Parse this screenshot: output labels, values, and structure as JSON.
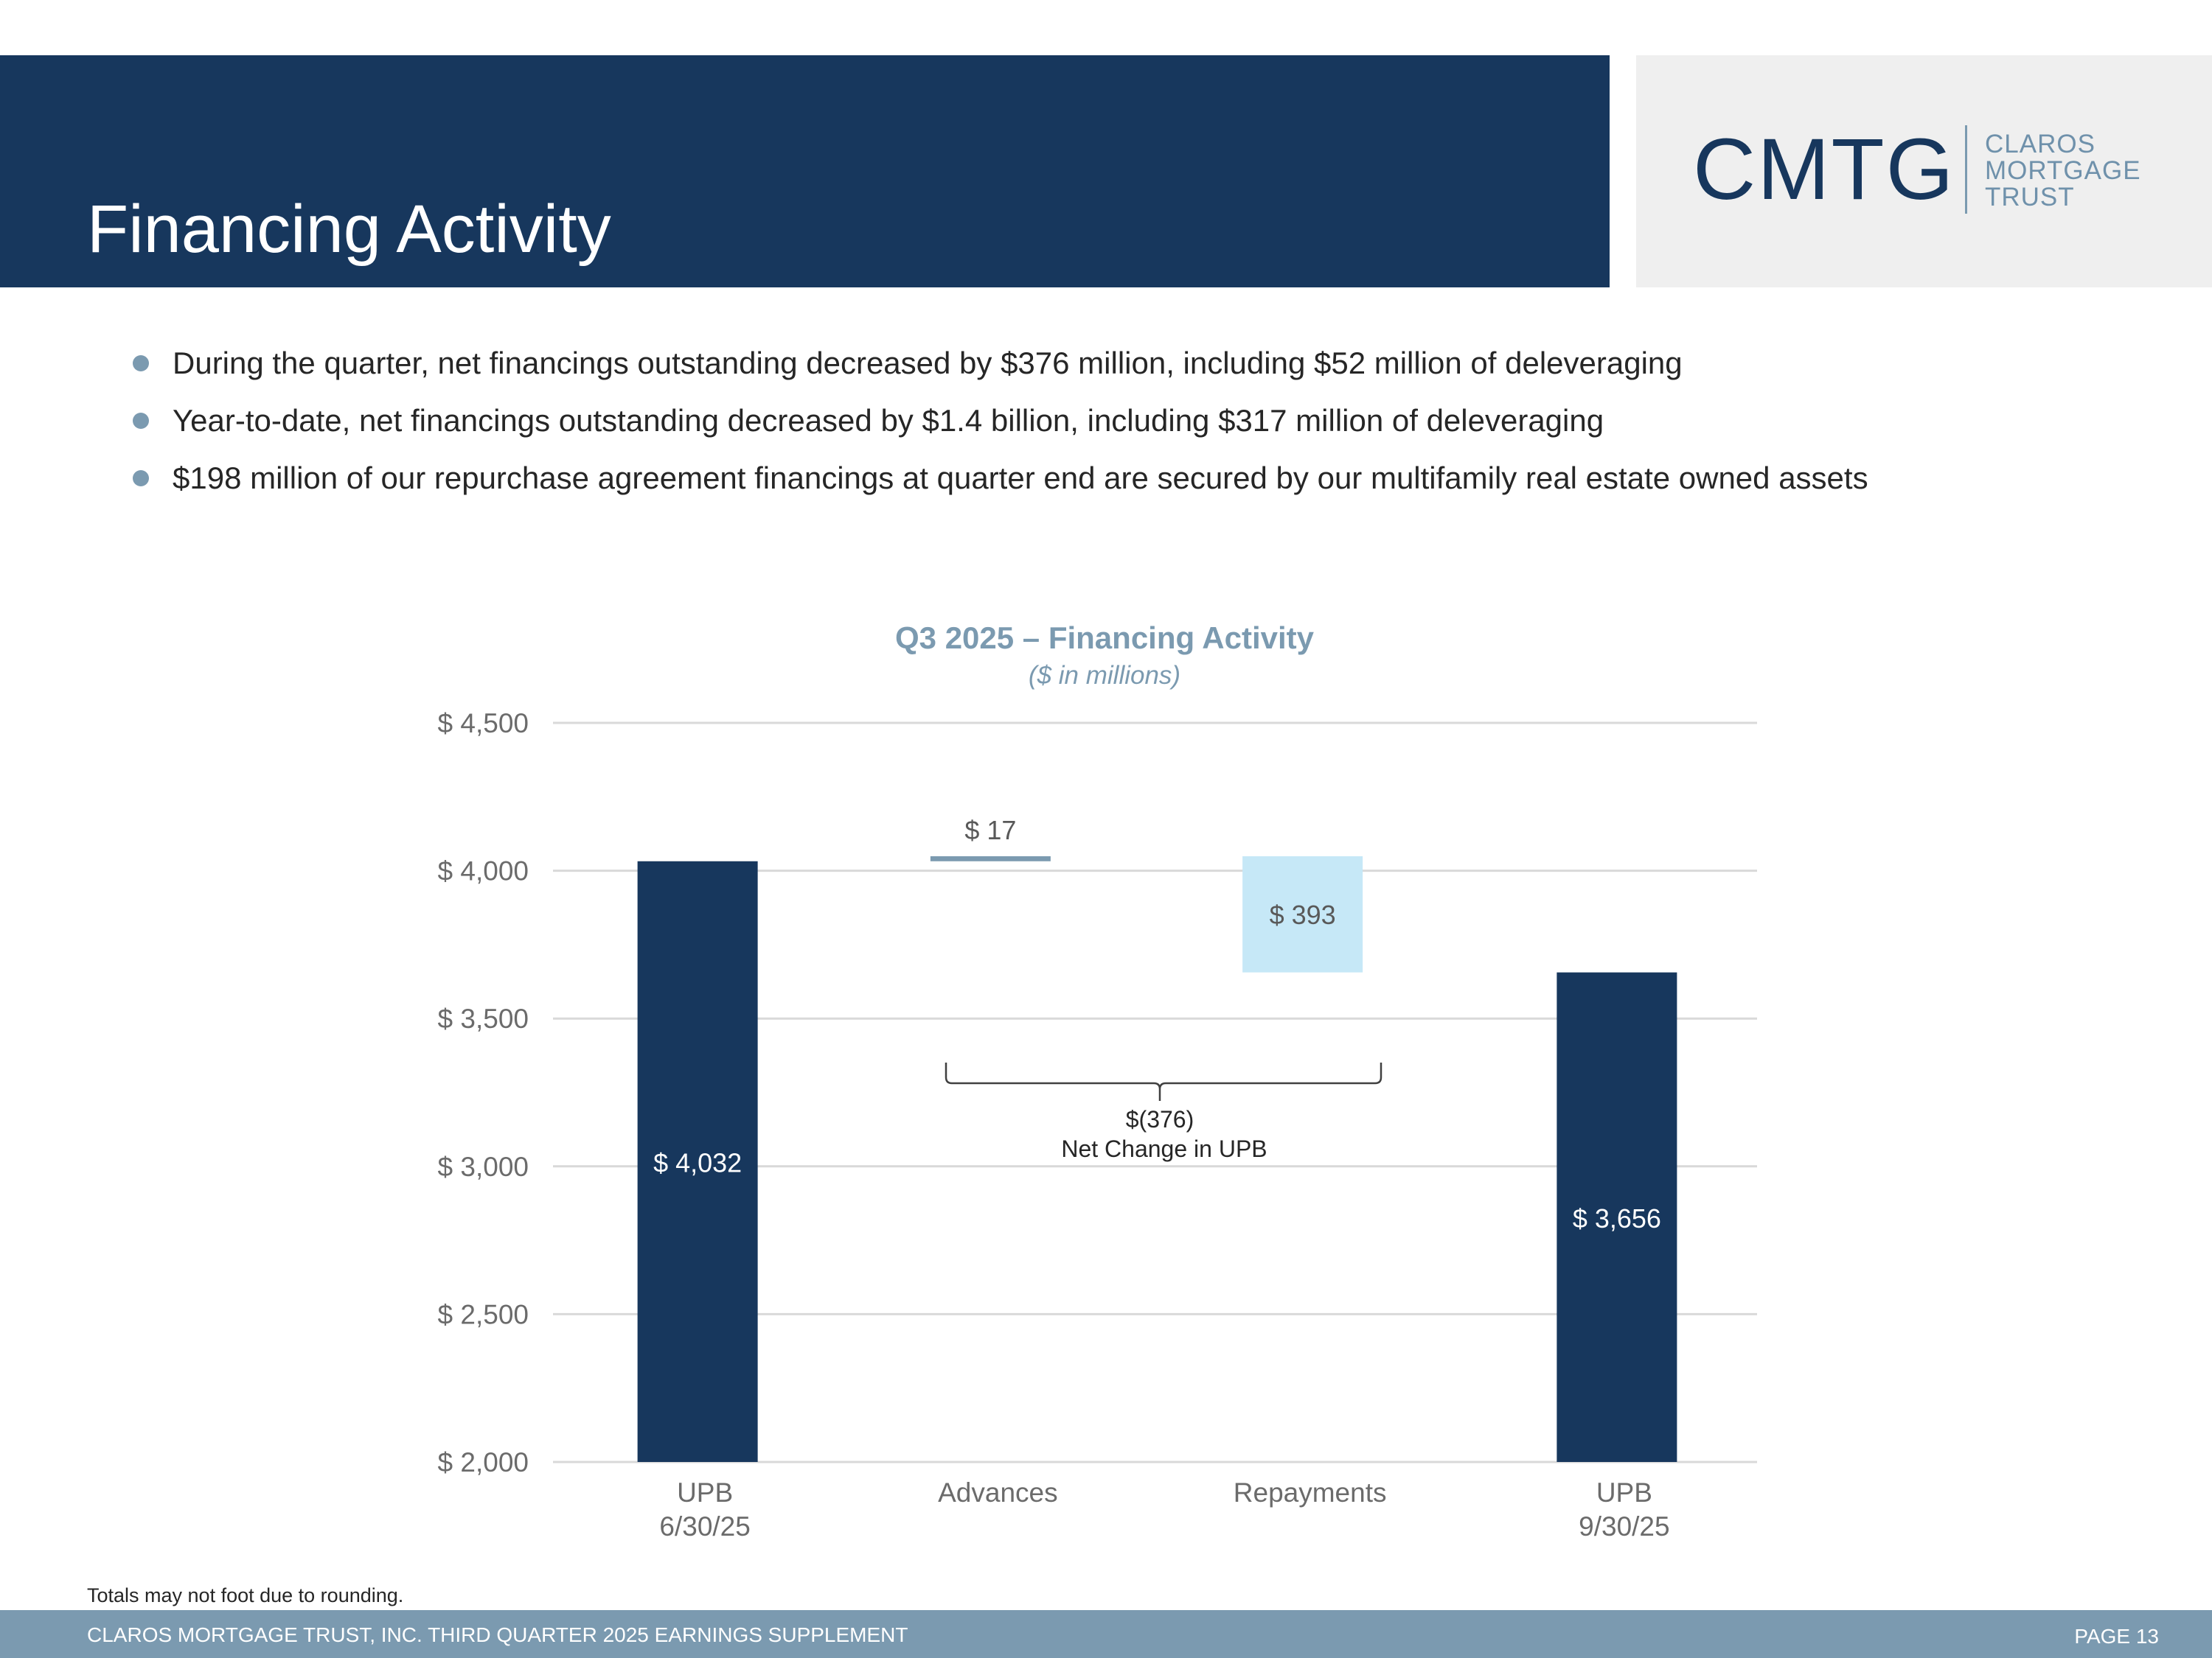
{
  "page": {
    "title": "Financing Activity",
    "page_label": "PAGE 13",
    "footer_text": "CLAROS MORTGAGE TRUST, INC. THIRD QUARTER 2025 EARNINGS SUPPLEMENT",
    "footnote": "Totals may not foot due to rounding."
  },
  "logo": {
    "mark": "CMTG",
    "words": [
      "CLAROS",
      "MORTGAGE",
      "TRUST"
    ]
  },
  "bullets": [
    "During the quarter, net financings outstanding decreased by $376 million, including $52 million of deleveraging",
    "Year-to-date, net financings outstanding decreased by $1.4 billion, including $317 million of deleveraging",
    "$198 million of our repurchase agreement financings at quarter end are secured by our multifamily real estate owned assets"
  ],
  "colors": {
    "navy": "#17375d",
    "steel": "#7b9ab0",
    "light_blue": "#c6e8f7",
    "grid": "#d9d9d9",
    "axis_text": "#6b6b6b"
  },
  "chart_data": {
    "type": "bar",
    "subtype": "waterfall",
    "title": "Q3 2025 – Financing Activity",
    "subtitle": "($ in millions)",
    "categories": [
      {
        "line1": "UPB",
        "line2": "6/30/25"
      },
      {
        "line1": "Advances",
        "line2": ""
      },
      {
        "line1": "Repayments",
        "line2": ""
      },
      {
        "line1": "UPB",
        "line2": "9/30/25"
      }
    ],
    "bars": [
      {
        "kind": "total",
        "start": 2000,
        "end": 4032,
        "label": "$ 4,032"
      },
      {
        "kind": "increase",
        "start": 4032,
        "end": 4049,
        "label": "$ 17"
      },
      {
        "kind": "decrease",
        "start": 4049,
        "end": 3656,
        "label": "$ 393"
      },
      {
        "kind": "total",
        "start": 2000,
        "end": 3656,
        "label": "$ 3,656"
      }
    ],
    "ylim": [
      2000,
      4500
    ],
    "yticks": [
      2000,
      2500,
      3000,
      3500,
      4000,
      4500
    ],
    "ytick_labels": [
      "$ 2,000",
      "$ 2,500",
      "$ 3,000",
      "$ 3,500",
      "$ 4,000",
      "$ 4,500"
    ],
    "grid": true,
    "annotation": {
      "value_text": "$(376)",
      "label": "Net Change in UPB",
      "spans": [
        "Advances",
        "Repayments"
      ]
    }
  }
}
